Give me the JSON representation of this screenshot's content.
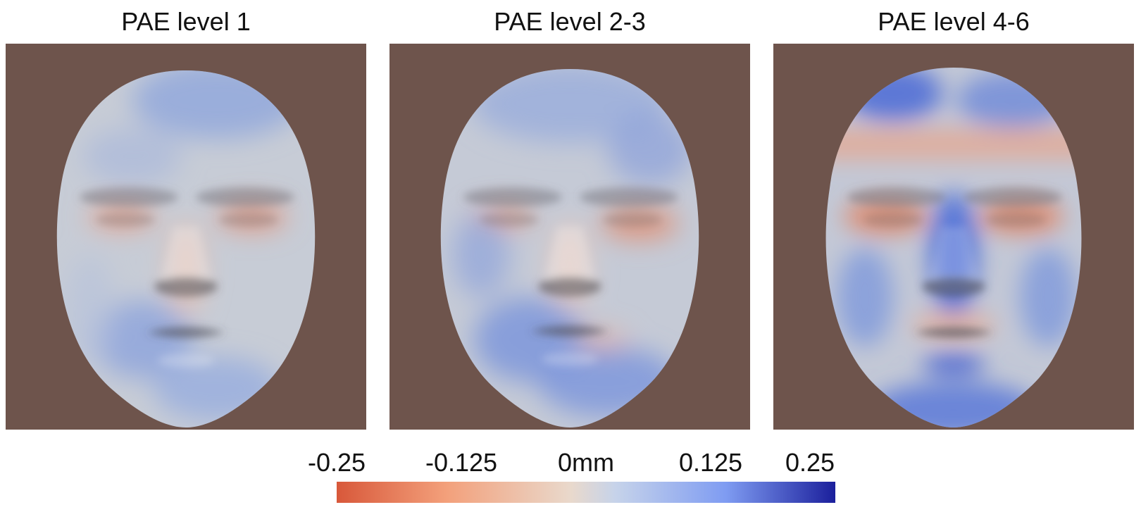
{
  "panels": [
    {
      "title": "PAE level 1"
    },
    {
      "title": "PAE level 2-3"
    },
    {
      "title": "PAE level 4-6"
    }
  ],
  "colorbar": {
    "ticks": [
      "-0.25",
      "-0.125",
      "0mm",
      "0.125",
      "0.25"
    ],
    "colors": {
      "negative": "#d8583a",
      "neutral": "#e9d9cc",
      "positive": "#1b1f9c"
    }
  },
  "colors": {
    "panel_background": "#6e544c"
  }
}
